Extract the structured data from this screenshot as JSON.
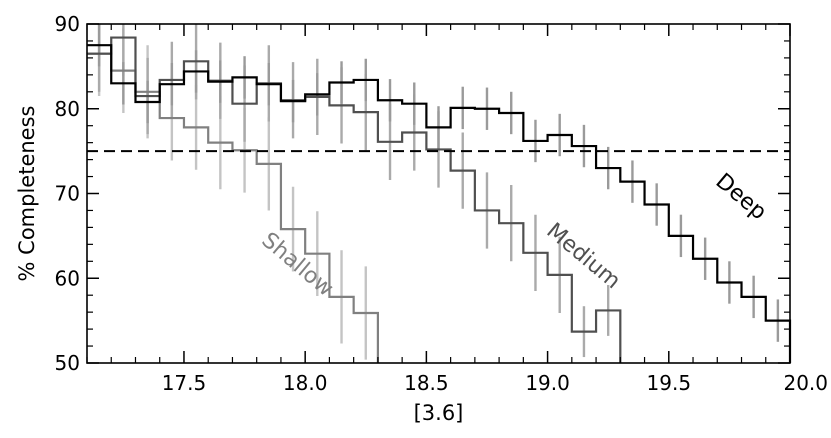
{
  "chart_data": {
    "type": "line",
    "xlabel": "[3.6]",
    "ylabel": "% Completeness",
    "xlim": [
      17.1,
      20.0
    ],
    "ylim": [
      50,
      90
    ],
    "xticks": [
      "17.5",
      "18.0",
      "18.5",
      "19.0",
      "19.5",
      "20.0"
    ],
    "yticks": [
      "50",
      "60",
      "70",
      "80",
      "90"
    ],
    "threshold": 75,
    "bin_width": 0.1,
    "grid": false,
    "legend": "none (direct labels)",
    "series": [
      {
        "name": "Shallow",
        "color": "#808080",
        "label_angle": 40,
        "bins": [
          17.1,
          17.2,
          17.3,
          17.4,
          17.5,
          17.6,
          17.7,
          17.8,
          17.9,
          18.0,
          18.1,
          18.2
        ],
        "values": [
          86.5,
          84.5,
          82.0,
          78.9,
          77.8,
          76.0,
          75.1,
          73.5,
          65.8,
          62.9,
          57.8,
          55.9
        ],
        "errors": [
          5.0,
          5.0,
          5.5,
          5.0,
          5.0,
          5.5,
          5.0,
          5.5,
          5.0,
          5.0,
          5.5,
          5.5
        ]
      },
      {
        "name": "Medium",
        "color": "#505050",
        "label_angle": 40,
        "bins": [
          17.1,
          17.2,
          17.3,
          17.4,
          17.5,
          17.6,
          17.7,
          17.8,
          17.9,
          18.0,
          18.1,
          18.2,
          18.3,
          18.4,
          18.5,
          18.6,
          18.7,
          18.8,
          18.9,
          19.0,
          19.1,
          19.2
        ],
        "values": [
          86.5,
          88.4,
          81.5,
          83.4,
          85.6,
          83.3,
          80.6,
          83.0,
          81.0,
          81.4,
          80.4,
          79.6,
          76.1,
          77.2,
          75.2,
          72.7,
          68.0,
          66.5,
          63.0,
          60.4,
          53.7,
          56.2
        ],
        "errors": [
          4.5,
          4.5,
          4.5,
          4.5,
          4.5,
          4.5,
          4.5,
          4.5,
          4.5,
          4.5,
          4.5,
          4.5,
          4.5,
          4.5,
          4.5,
          4.5,
          4.5,
          4.5,
          4.5,
          4.5,
          3.0,
          3.0
        ]
      },
      {
        "name": "Deep",
        "color": "#000000",
        "label_angle": 40,
        "bins": [
          17.1,
          17.2,
          17.3,
          17.4,
          17.5,
          17.6,
          17.7,
          17.8,
          17.9,
          18.0,
          18.1,
          18.2,
          18.3,
          18.4,
          18.5,
          18.6,
          18.7,
          18.8,
          18.9,
          19.0,
          19.1,
          19.2,
          19.3,
          19.4,
          19.5,
          19.6,
          19.7,
          19.8,
          19.9
        ],
        "values": [
          87.5,
          83.0,
          80.8,
          82.9,
          84.4,
          83.2,
          83.7,
          82.9,
          80.9,
          81.7,
          83.1,
          83.4,
          81.0,
          80.6,
          77.8,
          80.1,
          80.0,
          79.5,
          76.2,
          76.9,
          75.6,
          73.0,
          71.4,
          68.7,
          65.0,
          62.3,
          59.5,
          57.8,
          55.0
        ],
        "errors": [
          2.5,
          2.5,
          2.5,
          2.5,
          2.5,
          2.5,
          2.5,
          2.5,
          2.5,
          2.5,
          2.5,
          2.5,
          2.5,
          2.5,
          2.5,
          2.5,
          2.5,
          2.5,
          2.5,
          2.5,
          2.5,
          2.5,
          2.5,
          2.5,
          2.5,
          2.5,
          2.5,
          2.5,
          2.5
        ]
      }
    ]
  }
}
